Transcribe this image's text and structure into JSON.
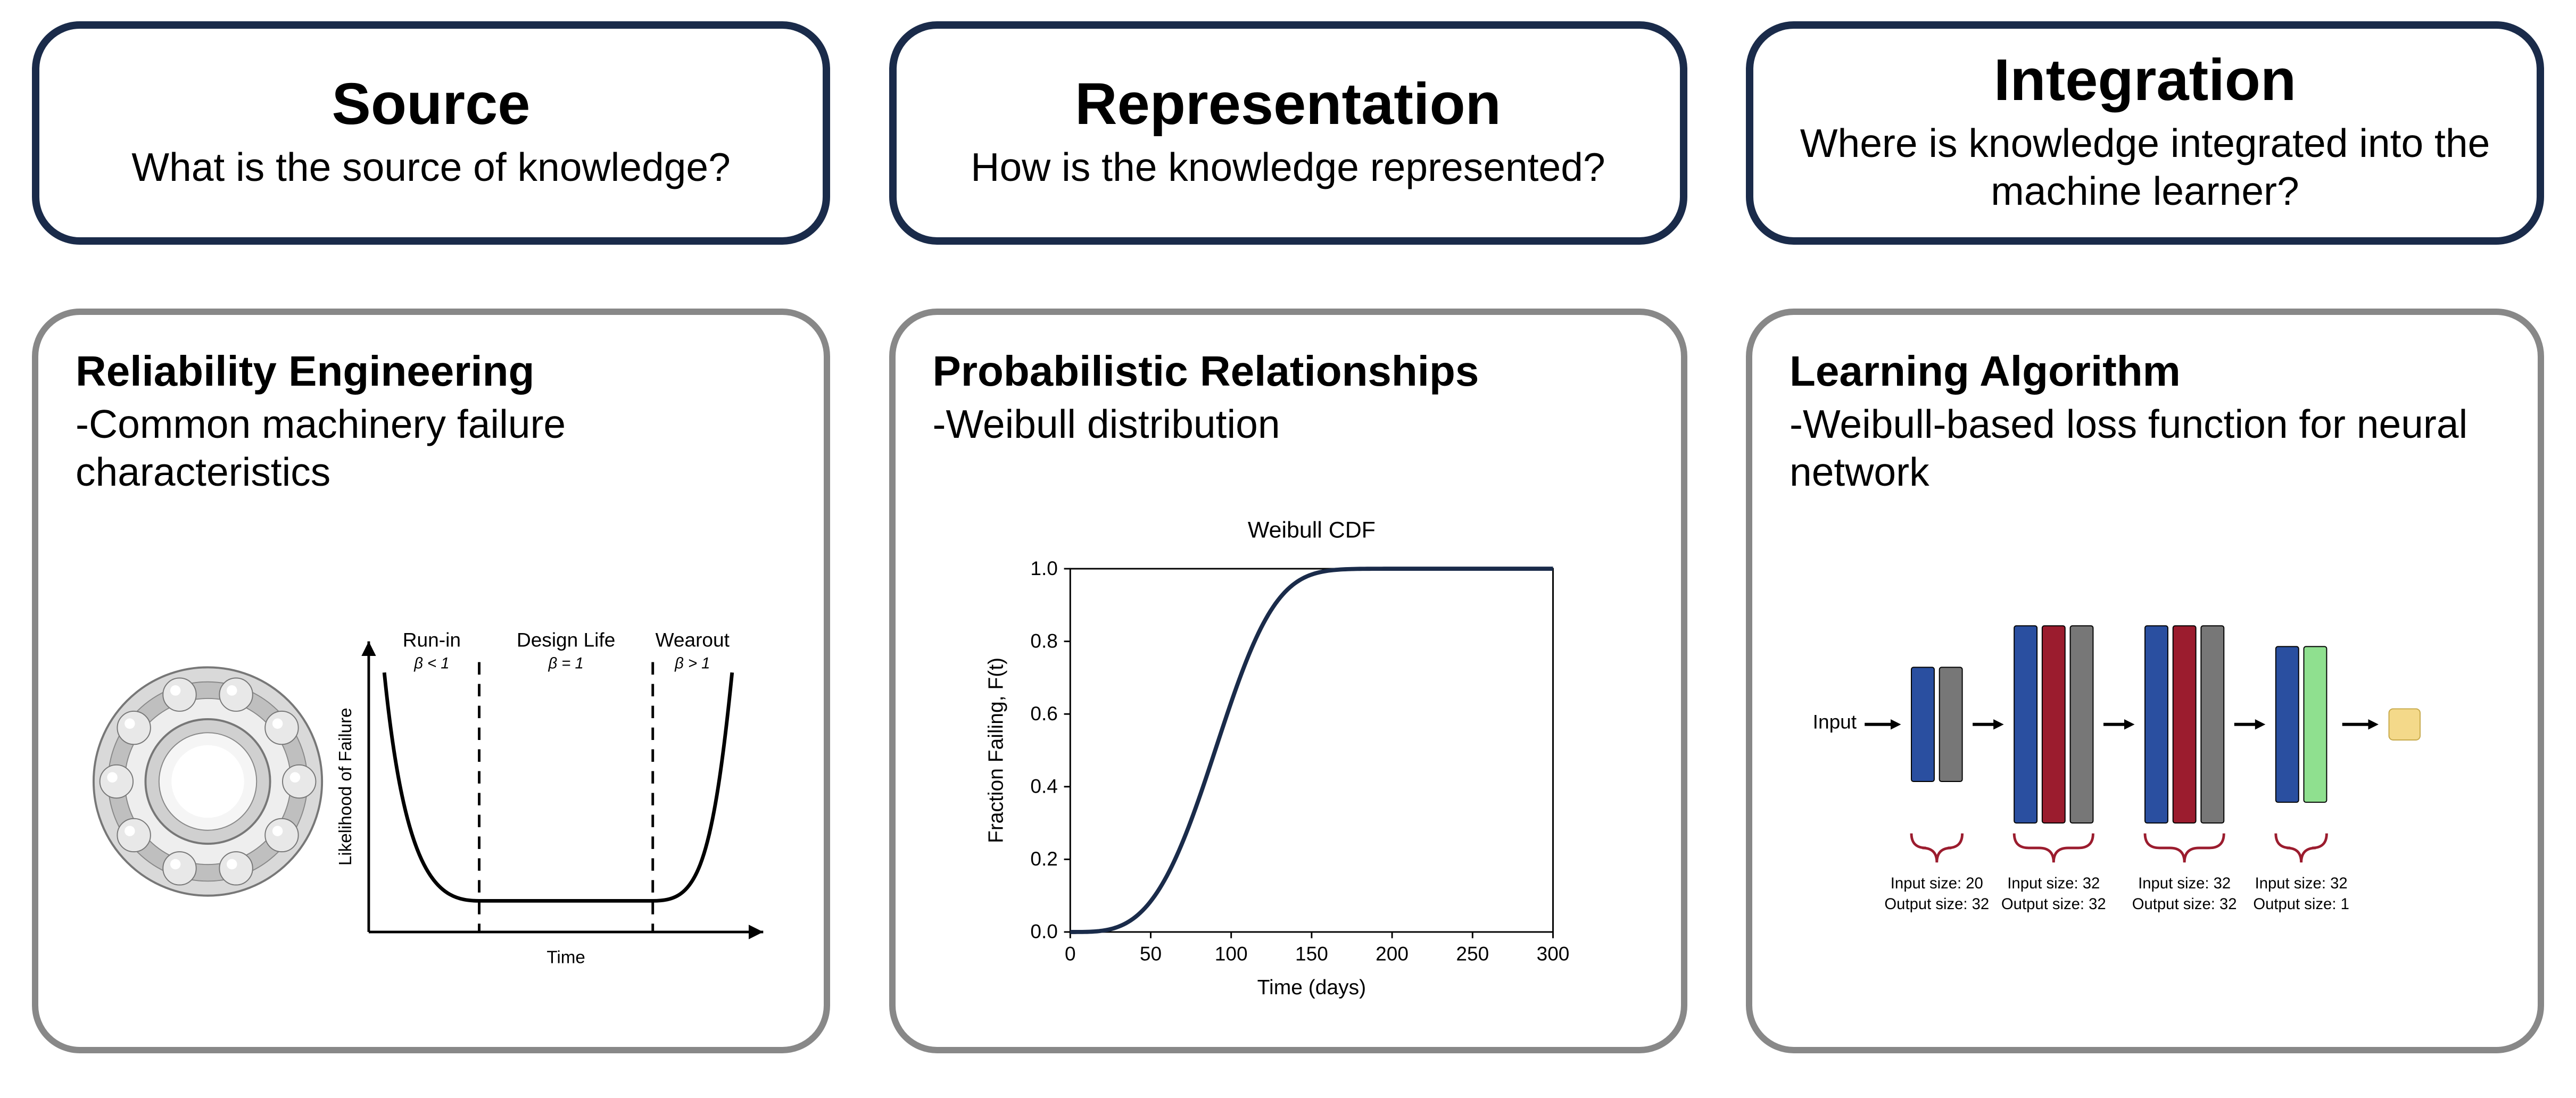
{
  "top": [
    {
      "title": "Source",
      "subtitle": "What is the source of knowledge?"
    },
    {
      "title": "Representation",
      "subtitle": "How is the knowledge represented?"
    },
    {
      "title": "Integration",
      "subtitle": "Where is knowledge integrated into the machine learner?"
    }
  ],
  "bottom": [
    {
      "heading": "Reliability Engineering",
      "desc": "-Common machinery failure characteristics",
      "bathtub": {
        "ylabel": "Likelihood of Failure",
        "xlabel": "Time",
        "phases": [
          {
            "label": "Run-in",
            "sub": "β < 1"
          },
          {
            "label": "Design Life",
            "sub": "β = 1"
          },
          {
            "label": "Wearout",
            "sub": "β > 1"
          }
        ],
        "curve_color": "#000000",
        "dash_color": "#000000"
      }
    },
    {
      "heading": "Probabilistic Relationships",
      "desc": "-Weibull distribution",
      "weibull": {
        "title": "Weibull CDF",
        "ylabel": "Fraction Failing, F(t)",
        "xlabel": "Time (days)",
        "xlim": [
          0,
          300
        ],
        "ylim": [
          0.0,
          1.0
        ],
        "xtick": [
          0,
          50,
          100,
          150,
          200,
          250,
          300
        ],
        "ytick": [
          0.0,
          0.2,
          0.4,
          0.6,
          0.8,
          1.0
        ],
        "line_color": "#1a2b4a",
        "scale": 100,
        "shape": 3.5
      }
    },
    {
      "heading": "Learning Algorithm",
      "desc": "-Weibull-based loss function for neural network",
      "nn": {
        "input_label": "Input",
        "layers": [
          {
            "bars": [
              "#2a4fa0",
              "#777777"
            ],
            "in": 20,
            "out": 32,
            "label_in": "Input size: 20",
            "label_out": "Output size: 32"
          },
          {
            "bars": [
              "#2a4fa0",
              "#9b1c2e",
              "#777777"
            ],
            "in": 32,
            "out": 32,
            "label_in": "Input size: 32",
            "label_out": "Output size: 32"
          },
          {
            "bars": [
              "#2a4fa0",
              "#9b1c2e",
              "#777777"
            ],
            "in": 32,
            "out": 32,
            "label_in": "Input size: 32",
            "label_out": "Output size: 32"
          },
          {
            "bars": [
              "#2a4fa0",
              "#8fe08f"
            ],
            "in": 32,
            "out": 1,
            "label_in": "Input size: 32",
            "label_out": "Output size: 1"
          }
        ],
        "output_color": "#f4d98a",
        "arrow_color": "#000000",
        "brace_color": "#9b1c2e"
      }
    }
  ],
  "colors": {
    "top_border": "#1a2b4a",
    "bottom_border": "#888888",
    "bg": "#ffffff"
  }
}
